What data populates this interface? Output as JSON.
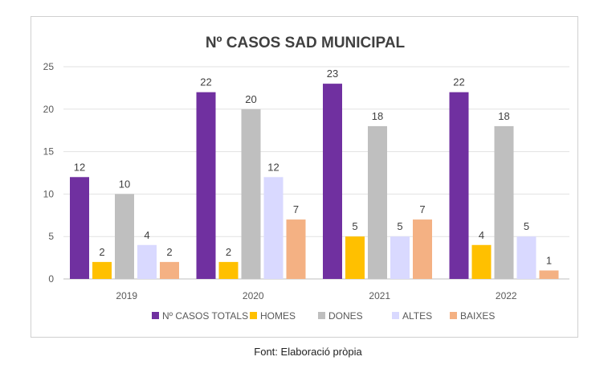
{
  "chart_data": {
    "type": "bar",
    "title": "Nº CASOS SAD MUNICIPAL",
    "xlabel": "",
    "ylabel": "",
    "categories": [
      "2019",
      "2020",
      "2021",
      "2022"
    ],
    "ylim": [
      0,
      25
    ],
    "yticks": [
      "0",
      "5",
      "10",
      "15",
      "20",
      "25"
    ],
    "grid": true,
    "legend_position": "bottom",
    "series": [
      {
        "name": "Nº CASOS TOTALS",
        "color": "#7030a0",
        "values": [
          12,
          22,
          23,
          22
        ]
      },
      {
        "name": "HOMES",
        "color": "#ffc000",
        "values": [
          2,
          2,
          5,
          4
        ]
      },
      {
        "name": "DONES",
        "color": "#bfbfbf",
        "values": [
          10,
          20,
          18,
          18
        ]
      },
      {
        "name": "ALTES",
        "color": "#d9d9ff",
        "values": [
          4,
          12,
          5,
          5
        ]
      },
      {
        "name": "BAIXES",
        "color": "#f4b183",
        "values": [
          2,
          7,
          7,
          1
        ]
      }
    ]
  },
  "footer": {
    "source": "Font: Elaboració pròpia"
  }
}
